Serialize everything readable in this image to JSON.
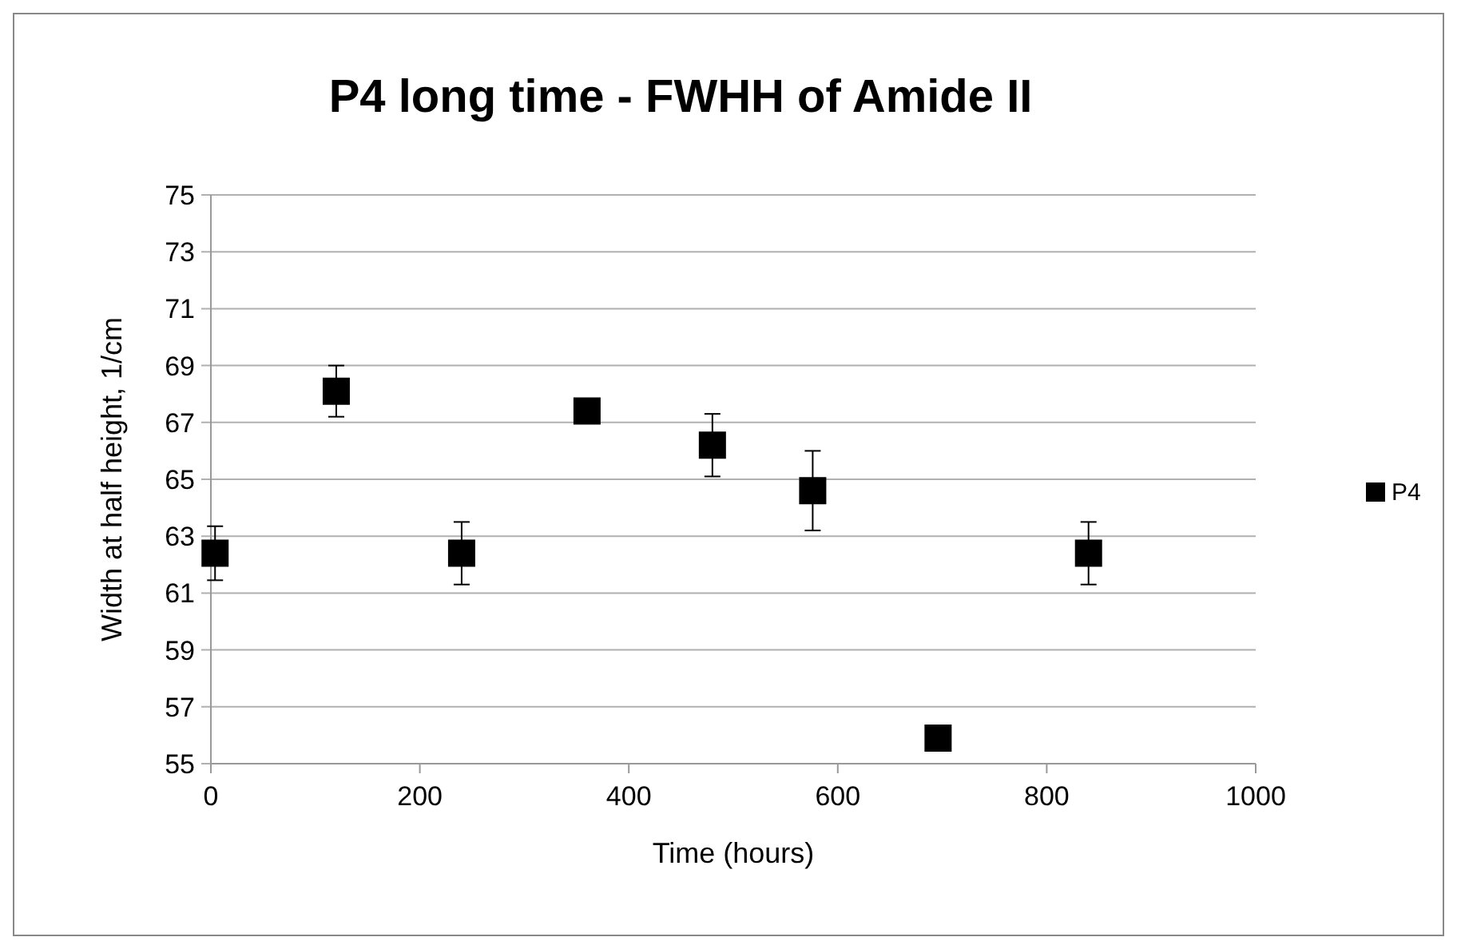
{
  "chart_data": {
    "type": "scatter",
    "title": "P4 long time - FWHH of Amide II",
    "xlabel": "Time (hours)",
    "ylabel": "Width at half height, 1/cm",
    "x": [
      4,
      120,
      240,
      360,
      480,
      576,
      696,
      840
    ],
    "series": [
      {
        "name": "P4",
        "color": "#000000",
        "values": [
          62.4,
          68.1,
          62.4,
          67.4,
          66.2,
          64.6,
          55.9,
          62.4
        ],
        "errors": [
          0.95,
          0.9,
          1.1,
          null,
          1.1,
          1.4,
          null,
          1.1
        ]
      }
    ],
    "xlim": [
      0,
      1000
    ],
    "xticks": [
      0,
      200,
      400,
      600,
      800,
      1000
    ],
    "ylim": [
      55,
      75
    ],
    "yticks": [
      55,
      57,
      59,
      61,
      63,
      65,
      67,
      69,
      71,
      73,
      75
    ],
    "grid": "y",
    "legend": "right",
    "marker": "square"
  }
}
